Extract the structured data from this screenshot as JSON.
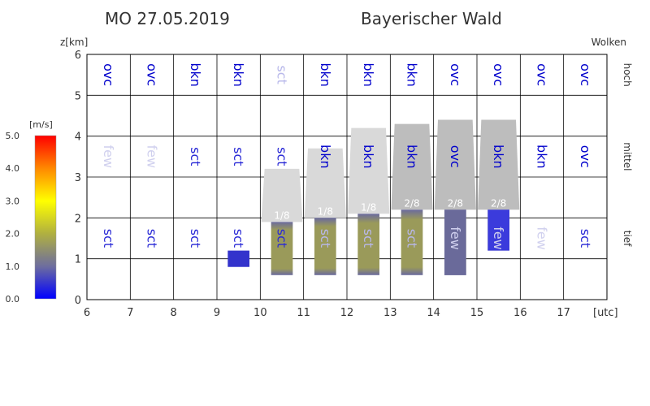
{
  "header": {
    "date": "MO 27.05.2019",
    "region": "Bayerischer Wald"
  },
  "chart_data": {
    "type": "cloud-meteogram",
    "ylabel": "z[km]",
    "xlabel": "[utc]",
    "top_right_label": "Wolken",
    "xlim": [
      6,
      18
    ],
    "ylim": [
      0,
      6
    ],
    "x_ticks": [
      6,
      7,
      8,
      9,
      10,
      11,
      12,
      13,
      14,
      15,
      16,
      17
    ],
    "y_ticks": [
      0,
      1,
      2,
      3,
      4,
      5,
      6
    ],
    "layer_labels": [
      {
        "name": "hoch",
        "y": 5.5
      },
      {
        "name": "mittel",
        "y": 3.5
      },
      {
        "name": "tief",
        "y": 1.5
      }
    ],
    "colorbar": {
      "unit": "[m/s]",
      "ticks": [
        "0.0",
        "1.0",
        "2.0",
        "3.0",
        "4.0",
        "5.0"
      ],
      "range": [
        0,
        5
      ]
    },
    "cover_colors": {
      "ovc": "#0000cc",
      "bkn": "#0000cc",
      "sct": "#2a2ad6",
      "few": "#d0d0ee"
    },
    "cover_colors_faint": {
      "sct": "#b8b8ea"
    },
    "cloud_cover": {
      "hours": [
        6,
        7,
        8,
        9,
        10,
        11,
        12,
        13,
        14,
        15,
        16,
        17
      ],
      "high": [
        "ovc",
        "ovc",
        "bkn",
        "bkn",
        "sct",
        "bkn",
        "bkn",
        "bkn",
        "ovc",
        "ovc",
        "ovc",
        "ovc"
      ],
      "mid": [
        "few",
        "few",
        "sct",
        "sct",
        "sct",
        "bkn",
        "bkn",
        "bkn",
        "ovc",
        "bkn",
        "bkn",
        "ovc"
      ],
      "low": [
        "sct",
        "sct",
        "sct",
        "sct",
        "sct",
        "sct",
        "sct",
        "sct",
        "few",
        "few",
        "few",
        "sct"
      ],
      "low_faint": [
        false,
        false,
        false,
        false,
        false,
        true,
        true,
        true,
        true,
        true,
        true,
        false
      ]
    },
    "convective_cells": [
      {
        "hour": 9,
        "base": 0.8,
        "top": 1.2,
        "color": "#3333cc"
      },
      {
        "hour": 10,
        "base": 0.6,
        "top": 1.9,
        "color": "#9a9a5a",
        "fraction": "1/8",
        "anvil_base": 1.9,
        "anvil_top": 3.2,
        "anvil_color": "#d9d9d9"
      },
      {
        "hour": 11,
        "base": 0.6,
        "top": 2.0,
        "color": "#9a9a5a",
        "fraction": "1/8",
        "anvil_base": 2.0,
        "anvil_top": 3.7,
        "anvil_color": "#d9d9d9"
      },
      {
        "hour": 12,
        "base": 0.6,
        "top": 2.1,
        "color": "#9a9a5a",
        "fraction": "1/8",
        "anvil_base": 2.1,
        "anvil_top": 4.2,
        "anvil_color": "#d9d9d9"
      },
      {
        "hour": 13,
        "base": 0.6,
        "top": 2.2,
        "color": "#8a8a6a",
        "fraction": "2/8",
        "anvil_base": 2.2,
        "anvil_top": 4.3,
        "anvil_color": "#bdbdbd"
      },
      {
        "hour": 14,
        "base": 0.6,
        "top": 2.2,
        "color": "#6a6a9a",
        "fraction": "2/8",
        "anvil_base": 2.2,
        "anvil_top": 4.4,
        "anvil_color": "#bdbdbd"
      },
      {
        "hour": 15,
        "base": 1.2,
        "top": 2.2,
        "color": "#3b3bdc",
        "fraction": "2/8",
        "anvil_base": 2.2,
        "anvil_top": 4.4,
        "anvil_color": "#bdbdbd"
      }
    ]
  }
}
